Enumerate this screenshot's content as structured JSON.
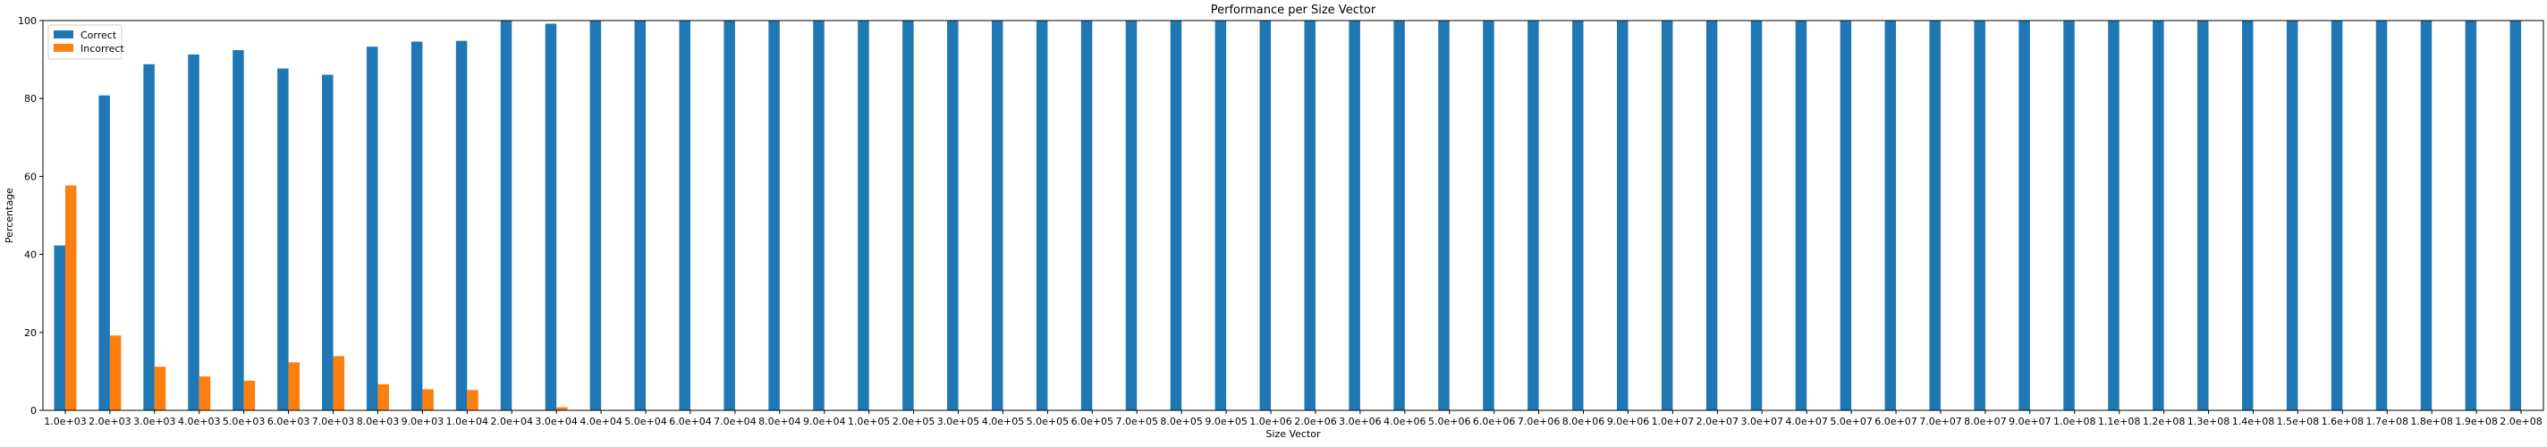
{
  "chart_data": {
    "type": "bar",
    "title": "Performance per Size Vector",
    "xlabel": "Size Vector",
    "ylabel": "Percentage",
    "ylim": [
      0,
      100
    ],
    "yticks": [
      "0",
      "20",
      "40",
      "60",
      "80",
      "100"
    ],
    "legend_position": "top-left",
    "grid": false,
    "categories": [
      "1.0e+03",
      "2.0e+03",
      "3.0e+03",
      "4.0e+03",
      "5.0e+03",
      "6.0e+03",
      "7.0e+03",
      "8.0e+03",
      "9.0e+03",
      "1.0e+04",
      "2.0e+04",
      "3.0e+04",
      "4.0e+04",
      "5.0e+04",
      "6.0e+04",
      "7.0e+04",
      "8.0e+04",
      "9.0e+04",
      "1.0e+05",
      "2.0e+05",
      "3.0e+05",
      "4.0e+05",
      "5.0e+05",
      "6.0e+05",
      "7.0e+05",
      "8.0e+05",
      "9.0e+05",
      "1.0e+06",
      "2.0e+06",
      "3.0e+06",
      "4.0e+06",
      "5.0e+06",
      "6.0e+06",
      "7.0e+06",
      "8.0e+06",
      "9.0e+06",
      "1.0e+07",
      "2.0e+07",
      "3.0e+07",
      "4.0e+07",
      "5.0e+07",
      "6.0e+07",
      "7.0e+07",
      "8.0e+07",
      "9.0e+07",
      "1.0e+08",
      "1.1e+08",
      "1.2e+08",
      "1.3e+08",
      "1.4e+08",
      "1.5e+08",
      "1.6e+08",
      "1.7e+08",
      "1.8e+08",
      "1.9e+08",
      "2.0e+08"
    ],
    "series": [
      {
        "name": "Correct",
        "color": "#1f77b4",
        "values": [
          42.3,
          80.8,
          88.8,
          91.3,
          92.4,
          87.7,
          86.1,
          93.3,
          94.6,
          94.8,
          100,
          99.2,
          100,
          100,
          100,
          100,
          100,
          100,
          100,
          100,
          100,
          100,
          100,
          100,
          100,
          100,
          100,
          100,
          100,
          100,
          100,
          100,
          100,
          100,
          100,
          100,
          100,
          100,
          100,
          100,
          100,
          100,
          100,
          100,
          100,
          100,
          100,
          100,
          100,
          100,
          100,
          100,
          100,
          100,
          100,
          100
        ]
      },
      {
        "name": "Incorrect",
        "color": "#ff7f0e",
        "values": [
          57.7,
          19.2,
          11.2,
          8.7,
          7.6,
          12.3,
          13.9,
          6.7,
          5.4,
          5.2,
          0,
          0.8,
          0,
          0,
          0,
          0,
          0,
          0,
          0,
          0,
          0,
          0,
          0,
          0,
          0,
          0,
          0,
          0,
          0,
          0,
          0,
          0,
          0,
          0,
          0,
          0,
          0,
          0,
          0,
          0,
          0,
          0,
          0,
          0,
          0,
          0,
          0,
          0,
          0,
          0,
          0,
          0,
          0,
          0,
          0,
          0
        ]
      }
    ]
  }
}
